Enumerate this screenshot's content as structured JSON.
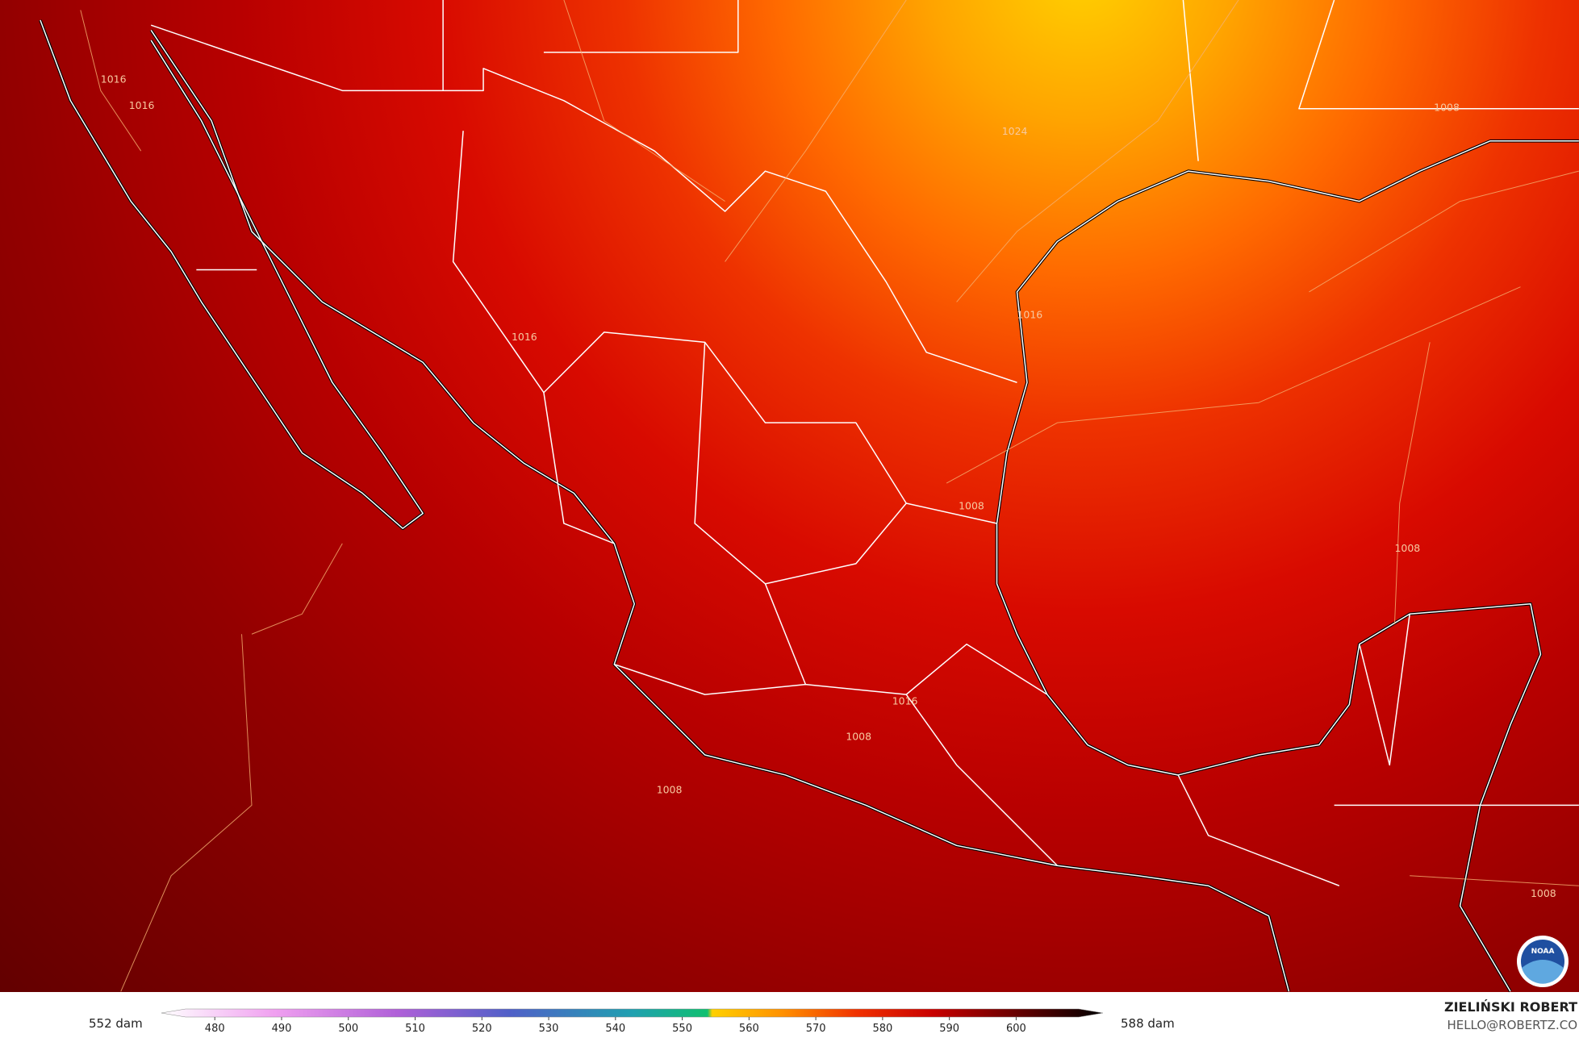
{
  "map": {
    "contour_labels": [
      "1016",
      "1016",
      "1024",
      "1008",
      "1016",
      "1016",
      "1008",
      "1008",
      "1016",
      "1008",
      "1008",
      "1008"
    ]
  },
  "colorbar": {
    "min_label": "552 dam",
    "max_label": "588 dam",
    "lim": [
      472,
      613
    ],
    "ticks": [
      480,
      490,
      500,
      510,
      520,
      530,
      540,
      550,
      560,
      570,
      580,
      590,
      600
    ]
  },
  "credits": {
    "name": "ZIELIŃSKI ROBERT",
    "email": "HELLO@ROBERTZ.CO",
    "logo": "NOAA"
  }
}
